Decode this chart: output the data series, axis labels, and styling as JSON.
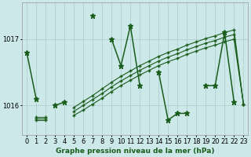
{
  "xlabel": "Graphe pression niveau de la mer (hPa)",
  "x": [
    0,
    1,
    2,
    3,
    4,
    5,
    6,
    7,
    8,
    9,
    10,
    11,
    12,
    13,
    14,
    15,
    16,
    17,
    18,
    19,
    20,
    21,
    22,
    23
  ],
  "line1": [
    1016.8,
    1016.1,
    null,
    1016.0,
    1016.05,
    null,
    null,
    1017.35,
    null,
    1017.0,
    1016.6,
    1017.2,
    1016.3,
    null,
    1016.5,
    1015.78,
    1015.88,
    1015.88,
    null,
    1016.3,
    1016.3,
    1017.1,
    1016.05,
    null
  ],
  "line2": [
    null,
    1015.82,
    1015.82,
    null,
    null,
    1015.97,
    1016.06,
    1016.15,
    1016.25,
    1016.35,
    1016.44,
    1016.52,
    1016.6,
    1016.67,
    1016.74,
    1016.8,
    1016.85,
    1016.91,
    1016.96,
    1017.01,
    1017.05,
    1017.1,
    1017.14,
    1016.02
  ],
  "line3": [
    null,
    1015.8,
    1015.8,
    null,
    null,
    1015.91,
    1016.0,
    1016.09,
    1016.18,
    1016.28,
    1016.37,
    1016.45,
    1016.53,
    1016.6,
    1016.67,
    1016.73,
    1016.78,
    1016.84,
    1016.89,
    1016.94,
    1016.98,
    1017.03,
    1017.07,
    1016.02
  ],
  "line4": [
    null,
    1015.78,
    1015.78,
    null,
    null,
    1015.85,
    1015.93,
    1016.02,
    1016.11,
    1016.21,
    1016.3,
    1016.38,
    1016.46,
    1016.53,
    1016.6,
    1016.66,
    1016.71,
    1016.77,
    1016.82,
    1016.87,
    1016.91,
    1016.96,
    1017.0,
    1016.02
  ],
  "ylim_min": 1015.55,
  "ylim_max": 1017.55,
  "yticks": [
    1016,
    1017
  ],
  "line_color": "#1a5c1a",
  "bg_color": "#cce8e8",
  "grid_color": "#aacccc",
  "label_fontsize": 6.5,
  "tick_fontsize": 6.0
}
